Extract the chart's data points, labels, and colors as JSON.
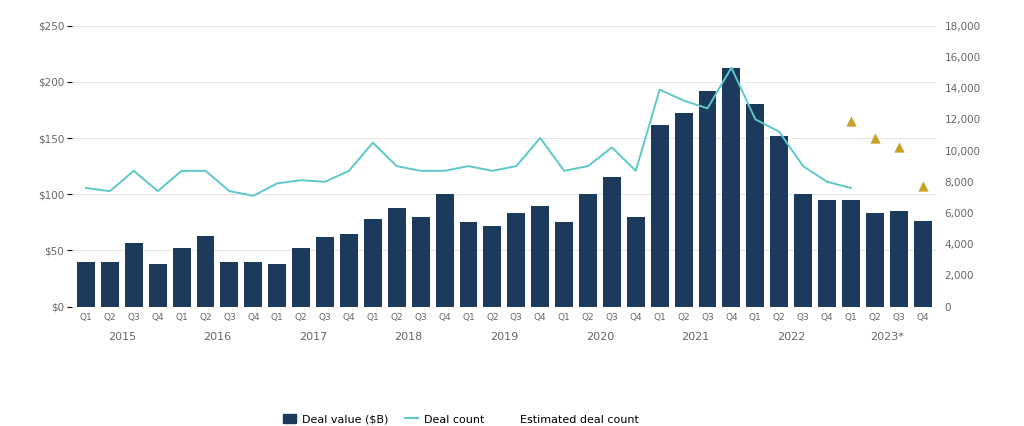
{
  "quarters": [
    "Q1",
    "Q2",
    "Q3",
    "Q4",
    "Q1",
    "Q2",
    "Q3",
    "Q4",
    "Q1",
    "Q2",
    "Q3",
    "Q4",
    "Q1",
    "Q2",
    "Q3",
    "Q4",
    "Q1",
    "Q2",
    "Q3",
    "Q4",
    "Q1",
    "Q2",
    "Q3",
    "Q4",
    "Q1",
    "Q2",
    "Q3",
    "Q4",
    "Q1",
    "Q2",
    "Q3",
    "Q4",
    "Q1",
    "Q2",
    "Q3",
    "Q4"
  ],
  "years": [
    2015,
    2015,
    2015,
    2015,
    2016,
    2016,
    2016,
    2016,
    2017,
    2017,
    2017,
    2017,
    2018,
    2018,
    2018,
    2018,
    2019,
    2019,
    2019,
    2019,
    2020,
    2020,
    2020,
    2020,
    2021,
    2021,
    2021,
    2021,
    2022,
    2022,
    2022,
    2022,
    2023,
    2023,
    2023,
    2023
  ],
  "deal_value": [
    40,
    40,
    57,
    38,
    52,
    63,
    40,
    40,
    38,
    52,
    62,
    65,
    78,
    88,
    80,
    100,
    75,
    72,
    83,
    90,
    75,
    100,
    115,
    80,
    162,
    172,
    192,
    212,
    180,
    152,
    100,
    95,
    95,
    83,
    85,
    76
  ],
  "deal_count_solid": [
    7600,
    7400,
    8700,
    7400,
    8700,
    8700,
    7400,
    7100,
    7900,
    8100,
    8000,
    8700,
    10500,
    9000,
    8700,
    8700,
    9000,
    8700,
    9000,
    10800,
    8700,
    9000,
    10200,
    8700,
    13900,
    13200,
    12700,
    15300,
    12000,
    11200,
    9000,
    8000,
    null,
    null,
    null,
    null
  ],
  "deal_count_estimated": [
    null,
    null,
    null,
    null,
    null,
    null,
    null,
    null,
    null,
    null,
    null,
    null,
    null,
    null,
    null,
    null,
    null,
    null,
    null,
    null,
    null,
    null,
    null,
    null,
    null,
    null,
    null,
    null,
    null,
    null,
    null,
    null,
    11900,
    10800,
    10200,
    7700
  ],
  "deal_count_line_extended": [
    null,
    null,
    null,
    null,
    null,
    null,
    null,
    null,
    null,
    null,
    null,
    null,
    null,
    null,
    null,
    null,
    null,
    null,
    null,
    null,
    null,
    null,
    null,
    null,
    null,
    null,
    null,
    null,
    null,
    null,
    null,
    8000,
    7600,
    null,
    null,
    null
  ],
  "bar_color": "#1b3a5c",
  "line_color_solid": "#5ec8c8",
  "line_color_estimated": "#c9a227",
  "ylim_left": [
    0,
    250
  ],
  "ylim_right": [
    0,
    18000
  ],
  "yticks_left": [
    0,
    50,
    100,
    150,
    200,
    250
  ],
  "ytick_labels_left": [
    "$0",
    "$50",
    "$100",
    "$150",
    "$200",
    "$250"
  ],
  "yticks_right": [
    0,
    2000,
    4000,
    6000,
    8000,
    10000,
    12000,
    14000,
    16000,
    18000
  ],
  "ytick_labels_right": [
    "0",
    "2,000",
    "4,000",
    "6,000",
    "8,000",
    "10,000",
    "12,000",
    "14,000",
    "16,000",
    "18,000"
  ],
  "background_color": "#ffffff",
  "legend_labels": [
    "Deal value ($B)",
    "Deal count",
    "Estimated deal count"
  ],
  "grid_color": "#e0e0e0",
  "tick_color": "#888888",
  "text_color": "#666666"
}
